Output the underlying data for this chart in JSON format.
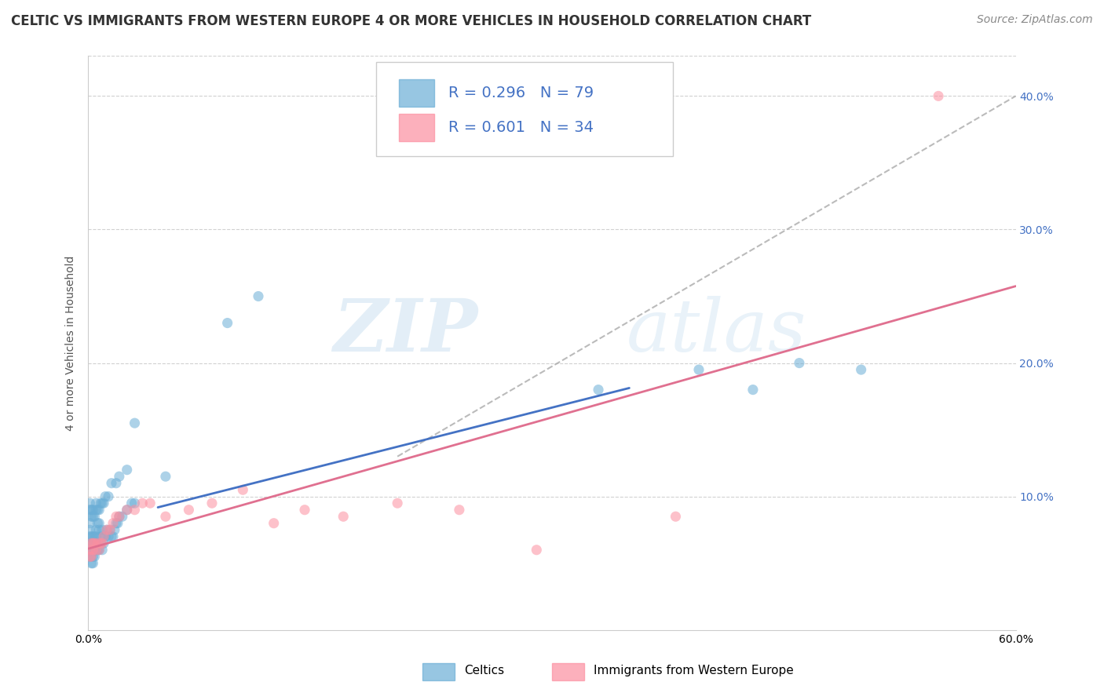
{
  "title": "CELTIC VS IMMIGRANTS FROM WESTERN EUROPE 4 OR MORE VEHICLES IN HOUSEHOLD CORRELATION CHART",
  "source_text": "Source: ZipAtlas.com",
  "ylabel": "4 or more Vehicles in Household",
  "xlim": [
    0.0,
    0.6
  ],
  "ylim": [
    0.0,
    0.43
  ],
  "right_yticks": [
    0.1,
    0.2,
    0.3,
    0.4
  ],
  "right_yticklabels": [
    "10.0%",
    "20.0%",
    "30.0%",
    "40.0%"
  ],
  "celtics_color": "#6baed6",
  "immigrants_color": "#fc8fa0",
  "celtics_line_color": "#4472c4",
  "immigrants_line_color": "#e07090",
  "ref_line_color": "#aaaaaa",
  "celtics_R": 0.296,
  "celtics_N": 79,
  "immigrants_R": 0.601,
  "immigrants_N": 34,
  "legend_label_1": "Celtics",
  "legend_label_2": "Immigrants from Western Europe",
  "watermark_zip": "ZIP",
  "watermark_atlas": "atlas",
  "celtics_x": [
    0.001,
    0.001,
    0.001,
    0.001,
    0.001,
    0.001,
    0.002,
    0.002,
    0.002,
    0.002,
    0.002,
    0.003,
    0.003,
    0.003,
    0.003,
    0.003,
    0.004,
    0.004,
    0.004,
    0.004,
    0.005,
    0.005,
    0.005,
    0.005,
    0.006,
    0.006,
    0.006,
    0.007,
    0.007,
    0.007,
    0.008,
    0.008,
    0.009,
    0.009,
    0.01,
    0.01,
    0.011,
    0.012,
    0.013,
    0.014,
    0.015,
    0.016,
    0.017,
    0.018,
    0.019,
    0.02,
    0.022,
    0.025,
    0.028,
    0.03,
    0.001,
    0.001,
    0.002,
    0.002,
    0.003,
    0.003,
    0.004,
    0.005,
    0.005,
    0.006,
    0.007,
    0.008,
    0.009,
    0.01,
    0.011,
    0.013,
    0.015,
    0.018,
    0.02,
    0.025,
    0.05,
    0.09,
    0.11,
    0.33,
    0.395,
    0.43,
    0.46,
    0.5,
    0.03
  ],
  "celtics_y": [
    0.06,
    0.065,
    0.07,
    0.075,
    0.08,
    0.055,
    0.06,
    0.065,
    0.07,
    0.055,
    0.05,
    0.06,
    0.065,
    0.07,
    0.055,
    0.05,
    0.06,
    0.065,
    0.07,
    0.055,
    0.06,
    0.065,
    0.07,
    0.075,
    0.06,
    0.065,
    0.08,
    0.06,
    0.075,
    0.08,
    0.065,
    0.07,
    0.06,
    0.075,
    0.065,
    0.07,
    0.07,
    0.075,
    0.07,
    0.075,
    0.07,
    0.07,
    0.075,
    0.08,
    0.08,
    0.085,
    0.085,
    0.09,
    0.095,
    0.095,
    0.09,
    0.095,
    0.085,
    0.09,
    0.085,
    0.09,
    0.085,
    0.09,
    0.095,
    0.09,
    0.09,
    0.095,
    0.095,
    0.095,
    0.1,
    0.1,
    0.11,
    0.11,
    0.115,
    0.12,
    0.115,
    0.23,
    0.25,
    0.18,
    0.195,
    0.18,
    0.2,
    0.195,
    0.155
  ],
  "immigrants_x": [
    0.001,
    0.001,
    0.002,
    0.002,
    0.003,
    0.003,
    0.004,
    0.005,
    0.006,
    0.007,
    0.008,
    0.009,
    0.01,
    0.012,
    0.014,
    0.016,
    0.018,
    0.02,
    0.025,
    0.03,
    0.035,
    0.04,
    0.05,
    0.065,
    0.08,
    0.1,
    0.12,
    0.14,
    0.165,
    0.2,
    0.24,
    0.29,
    0.38,
    0.55
  ],
  "immigrants_y": [
    0.055,
    0.06,
    0.055,
    0.065,
    0.06,
    0.065,
    0.065,
    0.06,
    0.065,
    0.06,
    0.065,
    0.065,
    0.07,
    0.075,
    0.075,
    0.08,
    0.085,
    0.085,
    0.09,
    0.09,
    0.095,
    0.095,
    0.085,
    0.09,
    0.095,
    0.105,
    0.08,
    0.09,
    0.085,
    0.095,
    0.09,
    0.06,
    0.085,
    0.4
  ],
  "title_fontsize": 12,
  "label_fontsize": 10,
  "tick_fontsize": 10,
  "legend_fontsize": 14,
  "source_fontsize": 10
}
